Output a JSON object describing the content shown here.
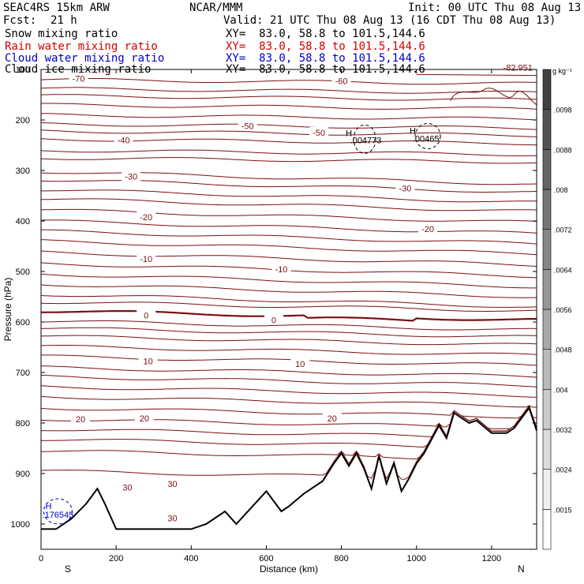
{
  "header": {
    "model": "SEAC4RS 15km ARW",
    "org": "NCAR/MMM",
    "init": "Init: 00 UTC Thu 08 Aug 13",
    "fcst_label": "Fcst:",
    "fcst_value": "21 h",
    "valid": "Valid: 21 UTC Thu 08 Aug 13 (16 CDT Thu 08 Aug 13)",
    "fields": [
      {
        "name": "Snow mixing ratio",
        "xy": "XY=  83.0, 58.8 to 101.5,144.6",
        "color": "#000000"
      },
      {
        "name": "Rain water mixing ratio",
        "xy": "XY=  83.0, 58.8 to 101.5,144.6",
        "color": "#d00000"
      },
      {
        "name": "Cloud water mixing ratio",
        "xy": "XY=  83.0, 58.8 to 101.5,144.6",
        "color": "#0000c8"
      },
      {
        "name": "Cloud ice mixing ratio",
        "xy": "XY=  83.0, 58.8 to 101.5,144.6",
        "color": "#000000"
      }
    ]
  },
  "chart_data": {
    "type": "line",
    "xlabel": "Distance (km)",
    "ylabel": "Pressure (hPa)",
    "xlim": [
      0,
      1320
    ],
    "ylim": [
      1050,
      100
    ],
    "x_ticks": [
      0,
      200,
      400,
      600,
      800,
      1000,
      1200
    ],
    "y_ticks": [
      200,
      300,
      400,
      500,
      600,
      700,
      800,
      900,
      1000
    ],
    "y_top_label": "100",
    "left_end": "S",
    "right_end": "N",
    "colorbar": {
      "unit": "g kg⁻¹",
      "labels": [
        ".0015",
        ".0024",
        ".0032",
        ".004",
        ".0048",
        ".0056",
        ".0064",
        ".0072",
        ".008",
        ".0088",
        ".0098"
      ]
    },
    "contour_labels": [
      {
        "text": "-70",
        "x": 100,
        "p": 118
      },
      {
        "text": "-60",
        "x": 800,
        "p": 123
      },
      {
        "text": "-50",
        "x": 550,
        "p": 212
      },
      {
        "text": "-50",
        "x": 740,
        "p": 225
      },
      {
        "text": "-40",
        "x": 220,
        "p": 240
      },
      {
        "text": "-30",
        "x": 240,
        "p": 312
      },
      {
        "text": "-30",
        "x": 970,
        "p": 335
      },
      {
        "text": "-20",
        "x": 280,
        "p": 392
      },
      {
        "text": "-20",
        "x": 1030,
        "p": 416
      },
      {
        "text": "-10",
        "x": 280,
        "p": 475
      },
      {
        "text": "-10",
        "x": 640,
        "p": 495
      },
      {
        "text": "0",
        "x": 280,
        "p": 587
      },
      {
        "text": "0",
        "x": 620,
        "p": 596
      },
      {
        "text": "10",
        "x": 285,
        "p": 677
      },
      {
        "text": "10",
        "x": 690,
        "p": 683
      },
      {
        "text": "20",
        "x": 105,
        "p": 792
      },
      {
        "text": "20",
        "x": 275,
        "p": 791
      },
      {
        "text": "20",
        "x": 775,
        "p": 791
      },
      {
        "text": "30",
        "x": 230,
        "p": 927
      },
      {
        "text": "30",
        "x": 350,
        "p": 920
      },
      {
        "text": "30",
        "x": 350,
        "p": 988
      }
    ],
    "extrema_labels": [
      {
        "text": "H",
        "x": 820,
        "p": 226,
        "color": "#000000"
      },
      {
        "text": ".004773",
        "x": 865,
        "p": 240,
        "color": "#000000"
      },
      {
        "text": "H",
        "x": 990,
        "p": 221,
        "color": "#000000"
      },
      {
        "text": ".00465",
        "x": 1025,
        "p": 237,
        "color": "#000000"
      },
      {
        "text": "H",
        "x": 20,
        "p": 964,
        "color": "#0000c8"
      },
      {
        "text": ".176545",
        "x": 45,
        "p": 981,
        "color": "#0000c8"
      },
      {
        "text": "-82.951",
        "x": 1270,
        "p": 96,
        "color": "#7a0f12"
      }
    ],
    "isotherms_C": [
      -70,
      -60,
      -50,
      -40,
      -30,
      -20,
      -10,
      0,
      10,
      20,
      30
    ],
    "terrain_pressure": {
      "x": [
        0,
        40,
        80,
        120,
        150,
        170,
        200,
        400,
        440,
        490,
        520,
        600,
        640,
        660,
        700,
        750,
        780,
        800,
        820,
        840,
        860,
        880,
        900,
        920,
        940,
        960,
        980,
        1000,
        1020,
        1060,
        1080,
        1100,
        1140,
        1160,
        1200,
        1240,
        1260,
        1280,
        1300,
        1320
      ],
      "p": [
        1010,
        1010,
        990,
        960,
        930,
        960,
        1010,
        1010,
        1000,
        975,
        1000,
        935,
        975,
        965,
        940,
        915,
        880,
        860,
        885,
        860,
        890,
        930,
        865,
        920,
        880,
        935,
        910,
        880,
        860,
        805,
        830,
        780,
        800,
        795,
        820,
        820,
        810,
        790,
        770,
        815
      ]
    }
  }
}
